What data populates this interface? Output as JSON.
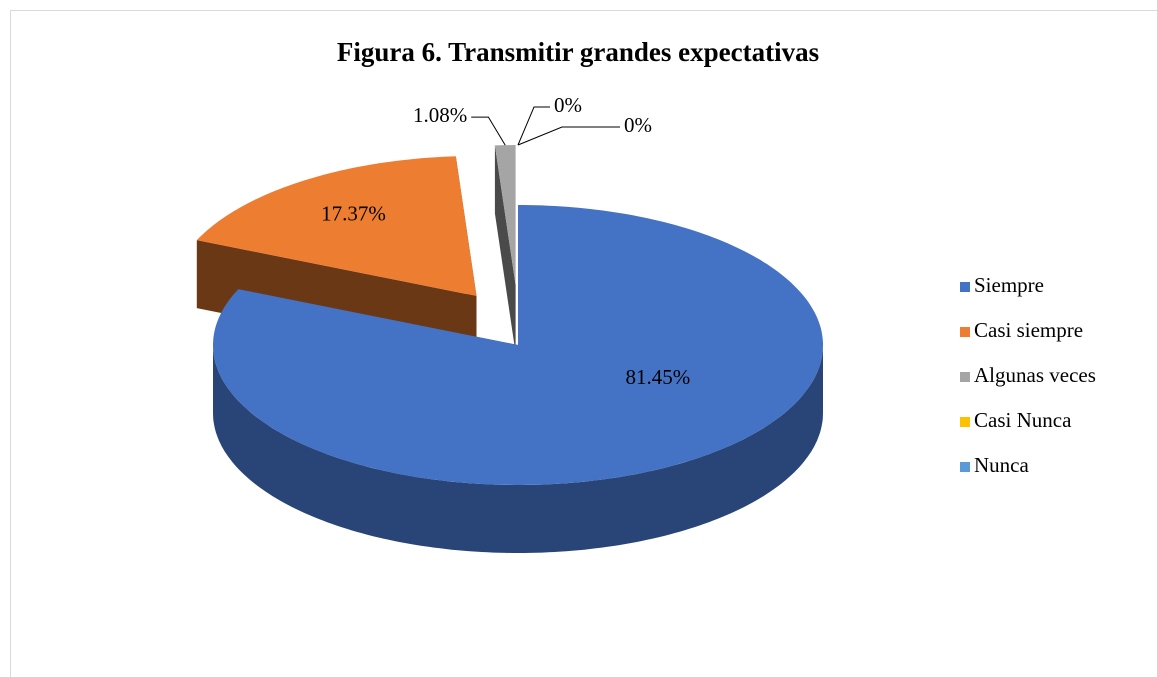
{
  "chart_data": {
    "type": "pie",
    "title": "Figura 6. Transmitir grandes expectativas",
    "categories": [
      "Siempre",
      "Casi siempre",
      "Algunas veces",
      "Casi Nunca",
      "Nunca"
    ],
    "values": [
      81.45,
      17.37,
      1.08,
      0,
      0
    ],
    "value_labels": [
      "81.45%",
      "17.37%",
      "1.08%",
      "0%",
      "0%"
    ],
    "colors": [
      "#4472c4",
      "#ed7d31",
      "#a5a5a5",
      "#ffc000",
      "#5b9bd5"
    ],
    "legend": "right"
  }
}
